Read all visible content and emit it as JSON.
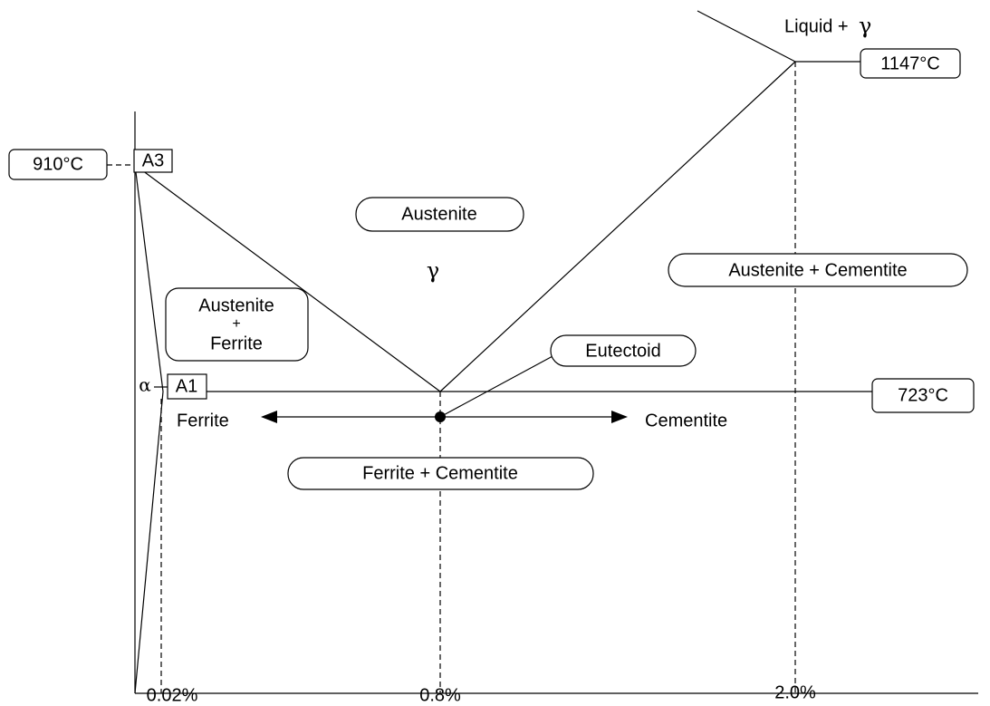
{
  "labels": {
    "liquid": "Liquid +",
    "liquid_gamma": "γ",
    "t1147": "1147°C",
    "t910": "910°C",
    "a3": "A3",
    "austenite": "Austenite",
    "gamma": "γ",
    "aust_cem": "Austenite + Cementite",
    "aust_ferrite": [
      "Austenite",
      "+",
      "Ferrite"
    ],
    "eutectoid": "Eutectoid",
    "alpha": "α",
    "a1": "A1",
    "t723": "723°C",
    "ferrite": "Ferrite",
    "cementite": "Cementite",
    "ferrite_cem": "Ferrite + Cementite"
  },
  "x_axis": [
    "0.02%",
    "0.8%",
    "2.0%"
  ]
}
